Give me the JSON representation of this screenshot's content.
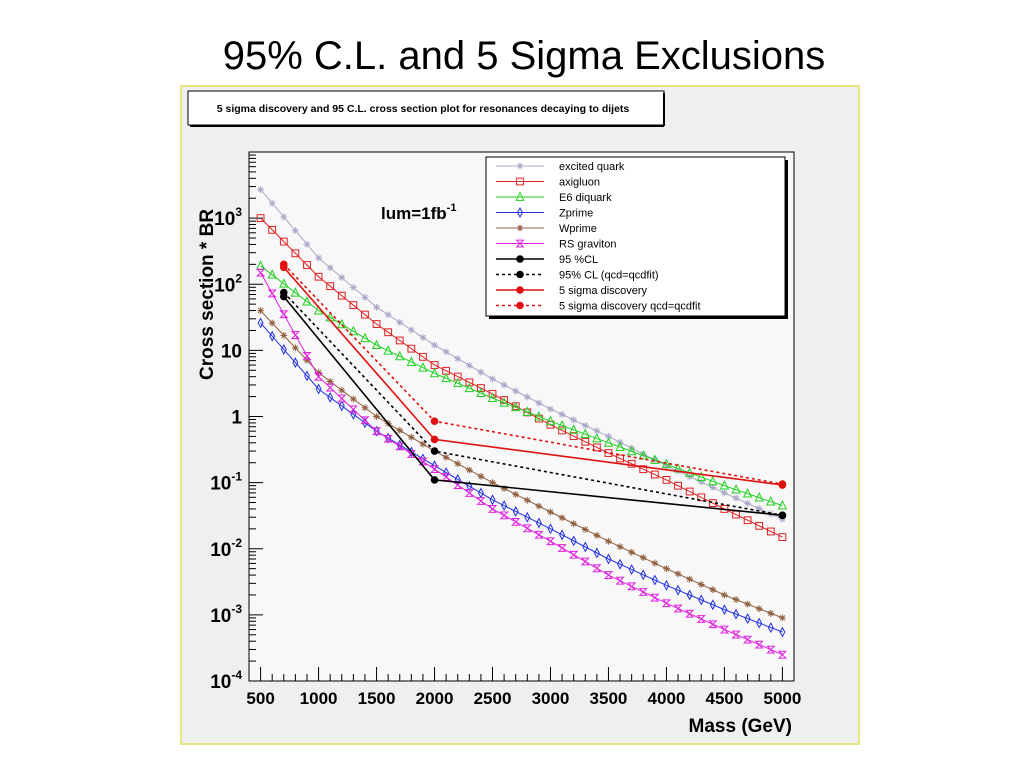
{
  "slide": {
    "title": "95% C.L. and 5 Sigma Exclusions"
  },
  "canvas": {
    "background": "#efefef",
    "border": "#e6e680"
  },
  "chart_data": {
    "type": "line",
    "title": "5 sigma discovery and 95 C.L. cross section plot for resonances decaying to dijets",
    "xlabel": "Mass (GeV)",
    "ylabel": "Cross section * BR",
    "annotation": "lum=1fb",
    "annotation_sup": "-1",
    "xlim": [
      400,
      5100
    ],
    "ylim": [
      0.0001,
      10000
    ],
    "yscale": "log",
    "x_ticks": [
      500,
      1000,
      1500,
      2000,
      2500,
      3000,
      3500,
      4000,
      4500,
      5000
    ],
    "x_tick_labels": [
      "500",
      "1000",
      "1500",
      "2000",
      "2500",
      "3000",
      "3500",
      "4000",
      "4500",
      "5000"
    ],
    "y_ticks": [
      {
        "value": 0.0001,
        "base": "10",
        "exp": "-4"
      },
      {
        "value": 0.001,
        "base": "10",
        "exp": "-3"
      },
      {
        "value": 0.01,
        "base": "10",
        "exp": "-2"
      },
      {
        "value": 0.1,
        "base": "10",
        "exp": "-1"
      },
      {
        "value": 1,
        "base": "1",
        "exp": ""
      },
      {
        "value": 10,
        "base": "10",
        "exp": ""
      },
      {
        "value": 100,
        "base": "10",
        "exp": "2"
      },
      {
        "value": 1000,
        "base": "10",
        "exp": "3"
      }
    ],
    "legend_position": "top-right",
    "series": [
      {
        "name": "excited quark",
        "color": "#a8a8c8",
        "marker": "star",
        "dash": "solid",
        "width": 1,
        "x": [
          500,
          1000,
          1500,
          2000,
          2500,
          3000,
          3500,
          4000,
          4500,
          5000
        ],
        "y": [
          2700,
          250,
          45,
          12,
          3.7,
          1.3,
          0.5,
          0.18,
          0.07,
          0.028
        ]
      },
      {
        "name": "axigluon",
        "color": "#e02020",
        "marker": "square",
        "dash": "solid",
        "width": 1,
        "x": [
          500,
          1000,
          1500,
          2000,
          2500,
          3000,
          3500,
          4000,
          4500,
          5000
        ],
        "y": [
          1000,
          130,
          25,
          6,
          2.2,
          0.75,
          0.28,
          0.11,
          0.04,
          0.015
        ]
      },
      {
        "name": "E6 diquark",
        "color": "#20d020",
        "marker": "triangle",
        "dash": "solid",
        "width": 1,
        "x": [
          500,
          1000,
          1500,
          2000,
          2500,
          3000,
          3500,
          4000,
          4500,
          5000
        ],
        "y": [
          190,
          40,
          12,
          4.5,
          1.9,
          0.85,
          0.4,
          0.19,
          0.09,
          0.045
        ]
      },
      {
        "name": "Zprime",
        "color": "#2030e0",
        "marker": "diamond",
        "dash": "solid",
        "width": 1,
        "x": [
          500,
          1000,
          1500,
          2000,
          2500,
          3000,
          3500,
          4000,
          4500,
          5000
        ],
        "y": [
          26,
          2.6,
          0.6,
          0.18,
          0.055,
          0.02,
          0.007,
          0.0028,
          0.0012,
          0.00055
        ]
      },
      {
        "name": "Wprime",
        "color": "#906040",
        "marker": "asterisk",
        "dash": "solid",
        "width": 1,
        "x": [
          500,
          1000,
          1500,
          2000,
          2500,
          3000,
          3500,
          4000,
          4500,
          5000
        ],
        "y": [
          40,
          4.6,
          1.0,
          0.3,
          0.1,
          0.036,
          0.013,
          0.005,
          0.002,
          0.0009
        ]
      },
      {
        "name": "RS graviton",
        "color": "#e020e0",
        "marker": "bowtie",
        "dash": "solid",
        "width": 1,
        "x": [
          500,
          1000,
          1500,
          2000,
          2500,
          3000,
          3500,
          4000,
          4500,
          5000
        ],
        "y": [
          150,
          4.0,
          0.6,
          0.16,
          0.04,
          0.013,
          0.004,
          0.0015,
          0.0006,
          0.00025
        ]
      },
      {
        "name": "95 %CL",
        "color": "#000000",
        "marker": "dot",
        "dash": "solid",
        "width": 1.6,
        "x": [
          700,
          2000,
          5000
        ],
        "y": [
          65,
          0.11,
          0.032
        ]
      },
      {
        "name": "95% CL (qcd=qcdfit)",
        "color": "#000000",
        "marker": "dot",
        "dash": "dotted",
        "width": 1.6,
        "x": [
          700,
          2000,
          5000
        ],
        "y": [
          75,
          0.3,
          0.032
        ]
      },
      {
        "name": "5 sigma discovery",
        "color": "#e01010",
        "marker": "dot",
        "dash": "solid",
        "width": 1.6,
        "x": [
          700,
          2000,
          5000
        ],
        "y": [
          180,
          0.45,
          0.092
        ]
      },
      {
        "name": "5 sigma discovery qcd=qcdfit",
        "color": "#e01010",
        "marker": "dot",
        "dash": "dotted",
        "width": 1.6,
        "x": [
          700,
          2000,
          5000
        ],
        "y": [
          200,
          0.85,
          0.095
        ]
      }
    ]
  }
}
